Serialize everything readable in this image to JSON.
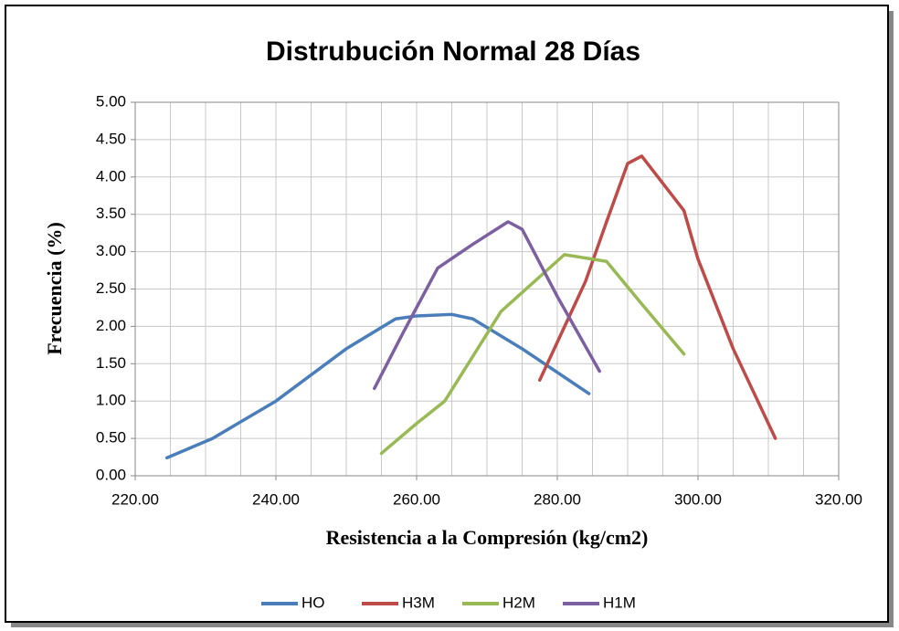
{
  "chart_data": {
    "type": "line",
    "title": "Distrubución Normal 28 Días",
    "xlabel": "Resistencia a la Compresión   (kg/cm2)",
    "ylabel": "Frecuencia (%)",
    "xlim": [
      220,
      320
    ],
    "ylim": [
      0,
      5
    ],
    "xticks": [
      {
        "value": 220,
        "label": "220.00"
      },
      {
        "value": 240,
        "label": "240.00"
      },
      {
        "value": 260,
        "label": "260.00"
      },
      {
        "value": 280,
        "label": "280.00"
      },
      {
        "value": 300,
        "label": "300.00"
      },
      {
        "value": 320,
        "label": "320.00"
      }
    ],
    "x_grid": [
      225,
      230,
      235,
      245,
      250,
      255,
      265,
      270,
      275,
      285,
      290,
      295,
      305,
      310,
      315
    ],
    "yticks": [
      {
        "value": 0,
        "label": "0.00"
      },
      {
        "value": 0.5,
        "label": "0.50"
      },
      {
        "value": 1,
        "label": "1.00"
      },
      {
        "value": 1.5,
        "label": "1.50"
      },
      {
        "value": 2,
        "label": "2.00"
      },
      {
        "value": 2.5,
        "label": "2.50"
      },
      {
        "value": 3,
        "label": "3.00"
      },
      {
        "value": 3.5,
        "label": "3.50"
      },
      {
        "value": 4,
        "label": "4.00"
      },
      {
        "value": 4.5,
        "label": "4.50"
      },
      {
        "value": 5,
        "label": "5.00"
      }
    ],
    "grid": true,
    "legend": "bottom",
    "series": [
      {
        "name": "HO",
        "color": "#4a7ebb",
        "x": [
          224.5,
          231,
          240,
          250,
          257,
          260,
          265,
          268,
          275,
          284.5
        ],
        "values": [
          0.24,
          0.5,
          1.0,
          1.7,
          2.1,
          2.14,
          2.16,
          2.1,
          1.7,
          1.1
        ]
      },
      {
        "name": "H3M",
        "color": "#be4b48",
        "x": [
          277.5,
          284,
          287,
          290,
          292,
          298,
          300,
          305,
          311
        ],
        "values": [
          1.28,
          2.6,
          3.4,
          4.18,
          4.28,
          3.55,
          2.9,
          1.7,
          0.5
        ]
      },
      {
        "name": "H2M",
        "color": "#98b954",
        "x": [
          255,
          260,
          264,
          272,
          281,
          287,
          292,
          298
        ],
        "values": [
          0.3,
          0.7,
          1.0,
          2.2,
          2.96,
          2.87,
          2.3,
          1.63
        ]
      },
      {
        "name": "H1M",
        "color": "#7d60a0",
        "x": [
          254,
          258,
          263,
          268,
          273,
          275,
          280,
          286
        ],
        "values": [
          1.17,
          1.9,
          2.78,
          3.1,
          3.4,
          3.3,
          2.4,
          1.4
        ]
      }
    ]
  }
}
